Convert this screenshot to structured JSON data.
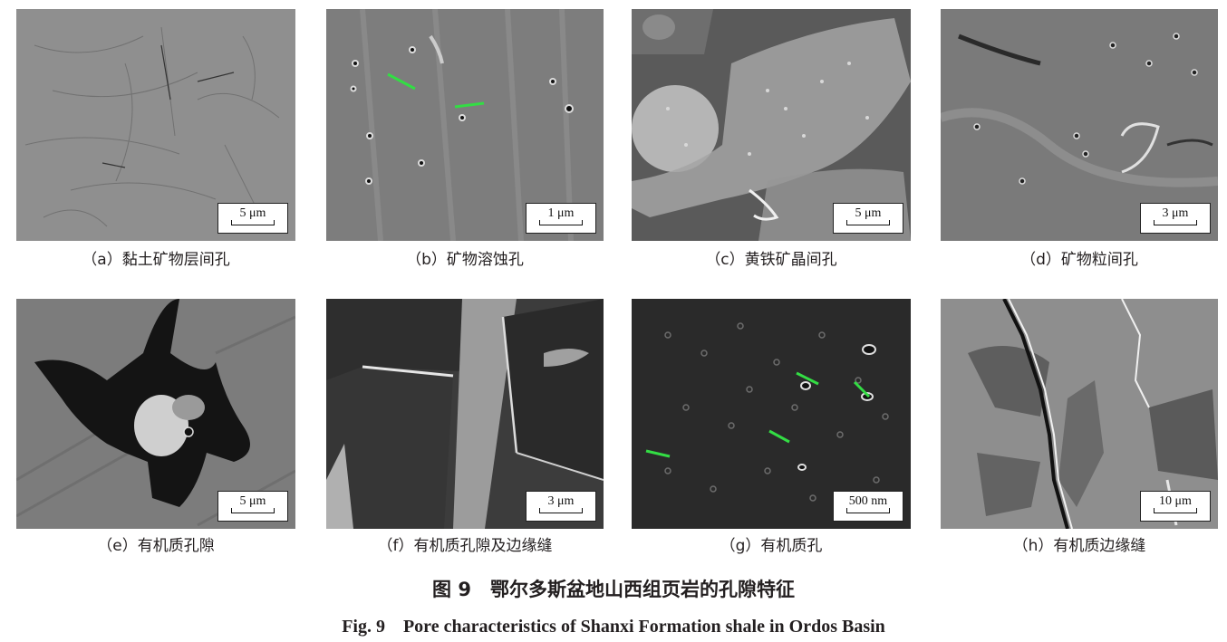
{
  "panels": [
    {
      "caption": "（a）黏土矿物层间孔",
      "scale": "5 μm"
    },
    {
      "caption": "（b）矿物溶蚀孔",
      "scale": "1 μm"
    },
    {
      "caption": "（c）黄铁矿晶间孔",
      "scale": "5 μm"
    },
    {
      "caption": "（d）矿物粒间孔",
      "scale": "3 μm"
    },
    {
      "caption": "（e）有机质孔隙",
      "scale": "5 μm"
    },
    {
      "caption": "（f）有机质孔隙及边缘缝",
      "scale": "3 μm"
    },
    {
      "caption": "（g）有机质孔",
      "scale": "500 nm"
    },
    {
      "caption": "（h）有机质边缘缝",
      "scale": "10 μm"
    }
  ],
  "figure": {
    "title_cn": "图 9　鄂尔多斯盆地山西组页岩的孔隙特征",
    "title_en": "Fig. 9　Pore characteristics of Shanxi Formation shale in Ordos Basin"
  },
  "colors": {
    "sem_gray": "#8a8a8a",
    "dark_organic": "#1a1a1a",
    "text": "#231f20"
  }
}
